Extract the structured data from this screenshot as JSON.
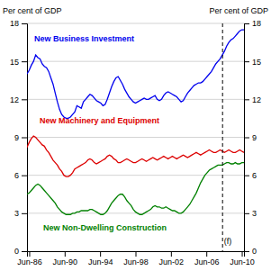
{
  "chart_data": {
    "type": "line",
    "ylabel": "Per cent of GDP",
    "y2label": "Per cent of GDP",
    "x": [
      1986.25,
      1986.495,
      1986.74,
      1986.985,
      1987.23,
      1987.475,
      1987.72,
      1987.965,
      1988.21,
      1988.455,
      1988.7,
      1988.945,
      1989.19,
      1989.435,
      1989.68,
      1989.925,
      1990.17,
      1990.415,
      1990.66,
      1990.905,
      1991.15,
      1991.395,
      1991.64,
      1991.885,
      1992.13,
      1992.375,
      1992.62,
      1992.865,
      1993.11,
      1993.355,
      1993.6,
      1993.845,
      1994.09,
      1994.335,
      1994.58,
      1994.825,
      1995.07,
      1995.315,
      1995.56,
      1995.805,
      1996.05,
      1996.295,
      1996.54,
      1996.785,
      1997.03,
      1997.275,
      1997.52,
      1997.765,
      1998.01,
      1998.255,
      1998.5,
      1998.745,
      1998.99,
      1999.235,
      1999.48,
      1999.725,
      1999.97,
      2000.215,
      2000.46,
      2000.705,
      2000.95,
      2001.195,
      2001.44,
      2001.685,
      2001.93,
      2002.175,
      2002.42,
      2002.665,
      2002.91,
      2003.155,
      2003.4,
      2003.645,
      2003.89,
      2004.135,
      2004.38,
      2004.625,
      2004.87,
      2005.115,
      2005.36,
      2005.605,
      2005.85,
      2006.095,
      2006.34,
      2006.585,
      2006.83,
      2007.075,
      2007.32,
      2007.565,
      2007.81,
      2008.055,
      2008.3,
      2008.545,
      2008.79,
      2009.035,
      2009.28,
      2009.525,
      2009.77,
      2010.015,
      2010.26,
      2010.505,
      2010.75
    ],
    "xlim": [
      1986.25,
      2010.75
    ],
    "xticks": [
      {
        "value": 1986.5,
        "label": "Jun-86"
      },
      {
        "value": 1990.5,
        "label": "Jun-90"
      },
      {
        "value": 1994.5,
        "label": "Jun-94"
      },
      {
        "value": 1998.5,
        "label": "Jun-98"
      },
      {
        "value": 2002.5,
        "label": "Jun-02"
      },
      {
        "value": 2006.5,
        "label": "Jun-06"
      },
      {
        "value": 2010.5,
        "label": "Jun-10"
      }
    ],
    "ylim": [
      0,
      18
    ],
    "yticks": [
      0,
      3,
      6,
      9,
      12,
      15,
      18
    ],
    "y2lim": [
      0,
      18
    ],
    "y2ticks": [
      0,
      3,
      6,
      9,
      12,
      15,
      18
    ],
    "grid": true,
    "vlines": [
      {
        "x": 2008.33,
        "line_style": "dashed"
      }
    ],
    "annotations": [
      {
        "text": "(f)",
        "x": 2008.5,
        "y": 0.6
      }
    ],
    "series": [
      {
        "name": "New Business Investment",
        "color": "#0000EE",
        "values": [
          14.0,
          14.3,
          14.7,
          15.0,
          15.5,
          15.3,
          15.2,
          14.8,
          14.6,
          14.5,
          14.2,
          13.7,
          13.2,
          12.5,
          11.8,
          11.2,
          10.8,
          10.6,
          10.5,
          10.5,
          10.6,
          10.8,
          11.0,
          11.5,
          11.4,
          11.3,
          11.8,
          12.0,
          12.2,
          12.4,
          12.3,
          12.1,
          11.9,
          11.8,
          11.7,
          11.5,
          11.6,
          12.0,
          12.5,
          13.0,
          13.4,
          13.7,
          13.8,
          13.5,
          13.2,
          12.8,
          12.5,
          12.2,
          12.0,
          11.8,
          11.7,
          11.8,
          11.9,
          12.0,
          12.1,
          12.0,
          12.0,
          12.1,
          12.2,
          12.3,
          12.0,
          11.9,
          12.0,
          12.3,
          12.5,
          12.6,
          12.5,
          12.4,
          12.3,
          12.2,
          12.0,
          11.8,
          11.9,
          12.2,
          12.5,
          12.7,
          12.9,
          13.1,
          13.2,
          13.3,
          13.3,
          13.4,
          13.6,
          13.8,
          14.0,
          14.2,
          14.5,
          14.8,
          15.0,
          15.2,
          15.5,
          15.8,
          16.2,
          16.5,
          16.7,
          16.8,
          17.0,
          17.2,
          17.4,
          17.5,
          17.5
        ]
      },
      {
        "name": "New Machinery and Equipment",
        "color": "#DD0000",
        "values": [
          8.2,
          8.6,
          8.9,
          9.1,
          9.0,
          8.8,
          8.6,
          8.4,
          8.3,
          8.0,
          7.8,
          7.5,
          7.2,
          7.0,
          6.8,
          6.5,
          6.3,
          6.0,
          5.9,
          5.9,
          6.0,
          6.2,
          6.5,
          6.6,
          6.7,
          6.8,
          6.9,
          7.0,
          7.2,
          7.3,
          7.2,
          7.0,
          6.9,
          7.0,
          7.1,
          7.2,
          7.3,
          7.5,
          7.6,
          7.5,
          7.3,
          7.2,
          7.0,
          7.0,
          7.1,
          7.2,
          7.3,
          7.2,
          7.1,
          7.0,
          7.0,
          7.1,
          7.2,
          7.3,
          7.2,
          7.1,
          7.2,
          7.3,
          7.4,
          7.3,
          7.2,
          7.3,
          7.4,
          7.5,
          7.4,
          7.3,
          7.4,
          7.5,
          7.4,
          7.3,
          7.4,
          7.5,
          7.6,
          7.5,
          7.4,
          7.5,
          7.6,
          7.7,
          7.8,
          7.7,
          7.6,
          7.7,
          7.8,
          7.9,
          8.0,
          7.9,
          7.8,
          7.8,
          7.9,
          8.0,
          7.9,
          7.8,
          7.9,
          8.0,
          7.9,
          7.8,
          7.8,
          7.9,
          8.0,
          7.9,
          7.8
        ]
      },
      {
        "name": "New Non-Dwelling Construction",
        "color": "#008000",
        "values": [
          4.5,
          4.6,
          4.8,
          5.0,
          5.2,
          5.3,
          5.2,
          5.0,
          4.8,
          4.6,
          4.4,
          4.2,
          4.0,
          3.8,
          3.5,
          3.3,
          3.1,
          3.0,
          2.9,
          2.9,
          2.9,
          3.0,
          3.0,
          3.1,
          3.1,
          3.2,
          3.2,
          3.2,
          3.2,
          3.3,
          3.3,
          3.2,
          3.1,
          3.0,
          2.9,
          2.9,
          3.0,
          3.2,
          3.5,
          3.8,
          4.0,
          4.2,
          4.4,
          4.5,
          4.5,
          4.3,
          4.0,
          3.8,
          3.6,
          3.3,
          3.1,
          3.0,
          2.9,
          2.9,
          3.0,
          3.1,
          3.2,
          3.3,
          3.5,
          3.6,
          3.5,
          3.5,
          3.4,
          3.4,
          3.5,
          3.4,
          3.3,
          3.2,
          3.2,
          3.1,
          3.0,
          3.0,
          3.1,
          3.3,
          3.5,
          3.7,
          4.0,
          4.3,
          4.6,
          5.0,
          5.4,
          5.7,
          6.0,
          6.2,
          6.4,
          6.5,
          6.6,
          6.7,
          6.8,
          6.8,
          6.8,
          6.9,
          7.0,
          7.0,
          6.9,
          6.9,
          7.0,
          6.9,
          6.9,
          7.0,
          7.0
        ]
      }
    ]
  }
}
